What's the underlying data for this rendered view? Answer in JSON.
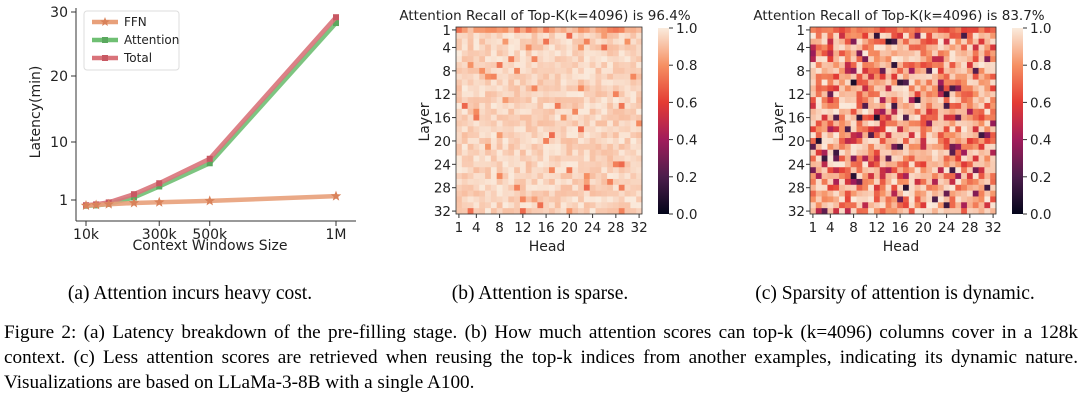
{
  "chart_data": [
    {
      "type": "line",
      "title": "",
      "xlabel": "Context Windows Size",
      "ylabel": "Latency(min)",
      "x": [
        10,
        50,
        100,
        200,
        300,
        500,
        1000
      ],
      "x_unit": "k tokens",
      "xticks": [
        {
          "value": 10,
          "label": "10k"
        },
        {
          "value": 300,
          "label": "300k"
        },
        {
          "value": 500,
          "label": "500k"
        },
        {
          "value": 1000,
          "label": "1M"
        }
      ],
      "yticks": [
        {
          "value": 1,
          "label": "1"
        },
        {
          "value": 10,
          "label": "10"
        },
        {
          "value": 20,
          "label": "20"
        },
        {
          "value": 30,
          "label": "30"
        }
      ],
      "ylim": [
        0,
        30
      ],
      "series": [
        {
          "name": "FFN",
          "color": "#e8a07a",
          "marker": "star",
          "values": [
            0.08,
            0.17,
            0.3,
            0.5,
            0.62,
            0.85,
            1.6
          ]
        },
        {
          "name": "Attention",
          "color": "#6fbf73",
          "marker": "square",
          "values": [
            0.05,
            0.1,
            0.35,
            1.4,
            3.1,
            6.7,
            28.3
          ]
        },
        {
          "name": "Total",
          "color": "#d9737a",
          "marker": "square",
          "values": [
            0.13,
            0.27,
            0.6,
            1.9,
            3.6,
            7.4,
            29.2
          ]
        }
      ],
      "legend": "top-left",
      "grid": false
    },
    {
      "type": "heatmap",
      "title": "Attention Recall of Top-K(k=4096) is 96.4%",
      "xlabel": "Head",
      "ylabel": "Layer",
      "rows": 32,
      "cols": 32,
      "xticks": [
        "1",
        "4",
        "8",
        "12",
        "16",
        "20",
        "24",
        "28",
        "32"
      ],
      "yticks": [
        "1",
        "4",
        "8",
        "12",
        "16",
        "20",
        "24",
        "28",
        "32"
      ],
      "colorbar": {
        "min": 0.0,
        "max": 1.0,
        "ticks": [
          "0.0",
          "0.2",
          "0.4",
          "0.6",
          "0.8",
          "1.0"
        ]
      },
      "summary_recall": 0.964,
      "note": "cell values approximated: mostly 0.90-1.00 with sparse darker cells"
    },
    {
      "type": "heatmap",
      "title": "Attention Recall of Top-K(k=4096) is 83.7%",
      "xlabel": "Head",
      "ylabel": "Layer",
      "rows": 32,
      "cols": 32,
      "xticks": [
        "1",
        "4",
        "8",
        "12",
        "16",
        "20",
        "24",
        "28",
        "32"
      ],
      "yticks": [
        "1",
        "4",
        "8",
        "12",
        "16",
        "20",
        "24",
        "28",
        "32"
      ],
      "colorbar": {
        "min": 0.0,
        "max": 1.0,
        "ticks": [
          "0.0",
          "0.2",
          "0.4",
          "0.6",
          "0.8",
          "1.0"
        ]
      },
      "summary_recall": 0.837,
      "note": "cell values approximated: wide spread with many red/dark cells"
    }
  ],
  "subcaptions": {
    "a": "(a) Attention incurs heavy cost.",
    "b": "(b) Attention is sparse.",
    "c": "(c) Sparsity of attention is dynamic."
  },
  "caption": "Figure 2: (a) Latency breakdown of the pre-filling stage. (b) How much attention scores can top-k (k=4096) columns cover in a 128k context. (c) Less attention scores are retrieved when reusing the top-k indices from another examples, indicating its dynamic nature. Visualizations are based on LLaMa-3-8B with a single A100."
}
